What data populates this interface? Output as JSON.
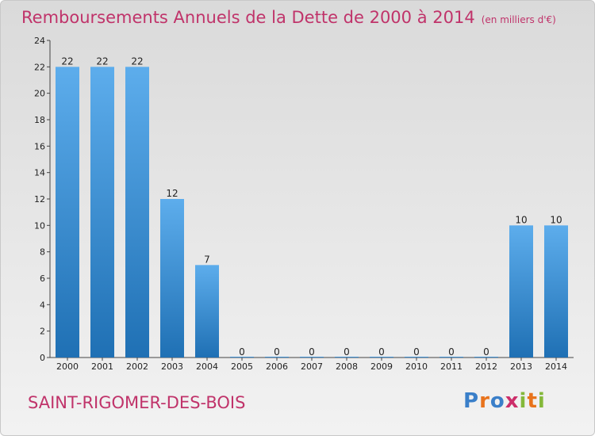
{
  "header": {
    "title": "Remboursements Annuels de la Dette de 2000 à 2014",
    "subtitle": "(en milliers d'€)"
  },
  "footer": {
    "town": "SAINT-RIGOMER-DES-BOIS",
    "logo": [
      "P",
      "r",
      "o",
      "x",
      "i",
      "t",
      "i"
    ]
  },
  "colors": {
    "title": "#c0336a",
    "bar_top": "#5dadec",
    "bar_bottom": "#1f70b4",
    "logo": [
      "#3a7fc9",
      "#e8731c",
      "#3a7fc9",
      "#cc2e6a",
      "#84b83a",
      "#e8731c",
      "#84b83a"
    ]
  },
  "chart_data": {
    "type": "bar",
    "title": "Remboursements Annuels de la Dette de 2000 à 2014",
    "subtitle": "(en milliers d'€)",
    "categories": [
      "2000",
      "2001",
      "2002",
      "2003",
      "2004",
      "2005",
      "2006",
      "2007",
      "2008",
      "2009",
      "2010",
      "2011",
      "2012",
      "2013",
      "2014"
    ],
    "values": [
      22,
      22,
      22,
      12,
      7,
      0,
      0,
      0,
      0,
      0,
      0,
      0,
      0,
      10,
      10
    ],
    "value_labels": [
      "22",
      "22",
      "22",
      "12",
      "7",
      "0",
      "0",
      "0",
      "0",
      "0",
      "0",
      "0",
      "0",
      "10",
      "10"
    ],
    "yticks": [
      0,
      2,
      4,
      6,
      8,
      10,
      12,
      14,
      16,
      18,
      20,
      22,
      24
    ],
    "ylim": [
      0,
      24
    ],
    "grid": false,
    "legend": "none"
  }
}
